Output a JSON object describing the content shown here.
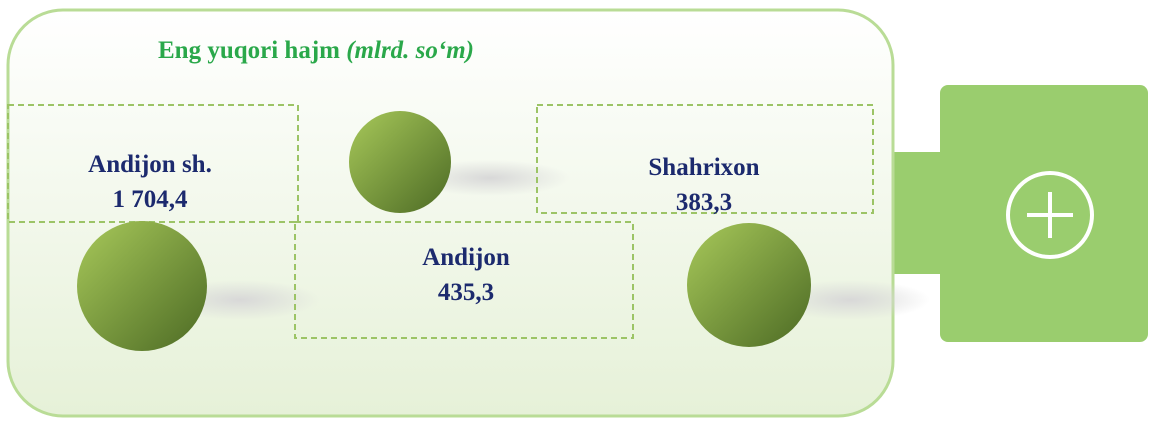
{
  "title": {
    "main": "Eng yuqori hajm",
    "unit": "(mlrd. so‘m)"
  },
  "items": [
    {
      "name": "Andijon sh.",
      "value": "1 704,4"
    },
    {
      "name": "Andijon",
      "value": "435,3"
    },
    {
      "name": "Shahrixon",
      "value": "383,3"
    }
  ]
}
